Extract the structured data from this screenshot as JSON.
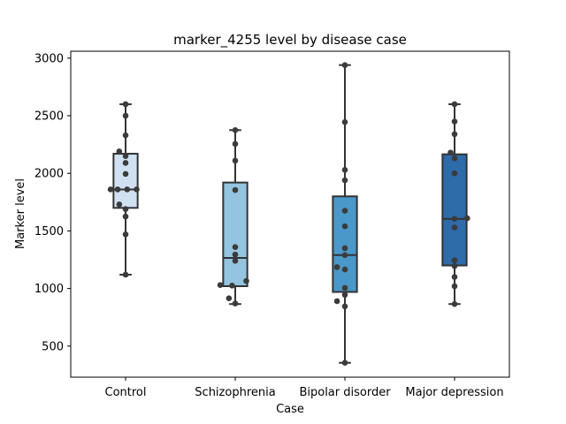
{
  "chart_data": {
    "type": "box",
    "title": "marker_4255 level by disease case",
    "xlabel": "Case",
    "ylabel": "Marker level",
    "ylim": [
      230,
      3060
    ],
    "yticks": [
      500,
      1000,
      1500,
      2000,
      2500,
      3000
    ],
    "grid": false,
    "categories": [
      "Control",
      "Schizophrenia",
      "Bipolar disorder",
      "Major depression"
    ],
    "colors": [
      "#d0e1f2",
      "#94c4df",
      "#4a98c9",
      "#2e6ba9"
    ],
    "boxes": [
      {
        "category": "Control",
        "whisker_low": 1120,
        "q1": 1700,
        "median": 1860,
        "q3": 2170,
        "whisker_high": 2600
      },
      {
        "category": "Schizophrenia",
        "whisker_low": 865,
        "q1": 1020,
        "median": 1265,
        "q3": 1920,
        "whisker_high": 2375
      },
      {
        "category": "Bipolar disorder",
        "whisker_low": 355,
        "q1": 970,
        "median": 1290,
        "q3": 1800,
        "whisker_high": 2940
      },
      {
        "category": "Major depression",
        "whisker_low": 865,
        "q1": 1200,
        "median": 1605,
        "q3": 2165,
        "whisker_high": 2600
      }
    ],
    "points": [
      {
        "category": "Control",
        "values": [
          2600,
          2500,
          2330,
          2190,
          2150,
          2090,
          1995,
          1860,
          1860,
          1860,
          1860,
          1730,
          1690,
          1625,
          1470,
          1120
        ],
        "offsets": [
          0,
          0,
          0,
          -0.08,
          0,
          0,
          0,
          -0.19,
          -0.1,
          0.02,
          0.14,
          -0.08,
          0,
          0,
          0,
          0
        ]
      },
      {
        "category": "Schizophrenia",
        "values": [
          2375,
          2255,
          2110,
          1855,
          1360,
          1295,
          1240,
          1065,
          1030,
          1025,
          915,
          870
        ],
        "offsets": [
          0,
          0,
          0,
          0,
          0,
          0,
          0,
          0.14,
          -0.19,
          -0.04,
          -0.08,
          0
        ]
      },
      {
        "category": "Bipolar disorder",
        "values": [
          2940,
          2445,
          2030,
          1940,
          1675,
          1540,
          1350,
          1290,
          1185,
          1165,
          1005,
          945,
          890,
          845,
          355
        ],
        "offsets": [
          0,
          0,
          0,
          0,
          0,
          0,
          0,
          0,
          -0.1,
          0,
          0,
          0,
          -0.1,
          0,
          0
        ]
      },
      {
        "category": "Major depression",
        "values": [
          2600,
          2450,
          2340,
          2180,
          2130,
          2000,
          1610,
          1605,
          1530,
          1245,
          1195,
          1100,
          1020,
          865
        ],
        "offsets": [
          0,
          0,
          0,
          -0.05,
          0,
          0,
          0.16,
          0,
          0,
          0,
          0,
          0,
          0,
          0
        ]
      }
    ]
  }
}
